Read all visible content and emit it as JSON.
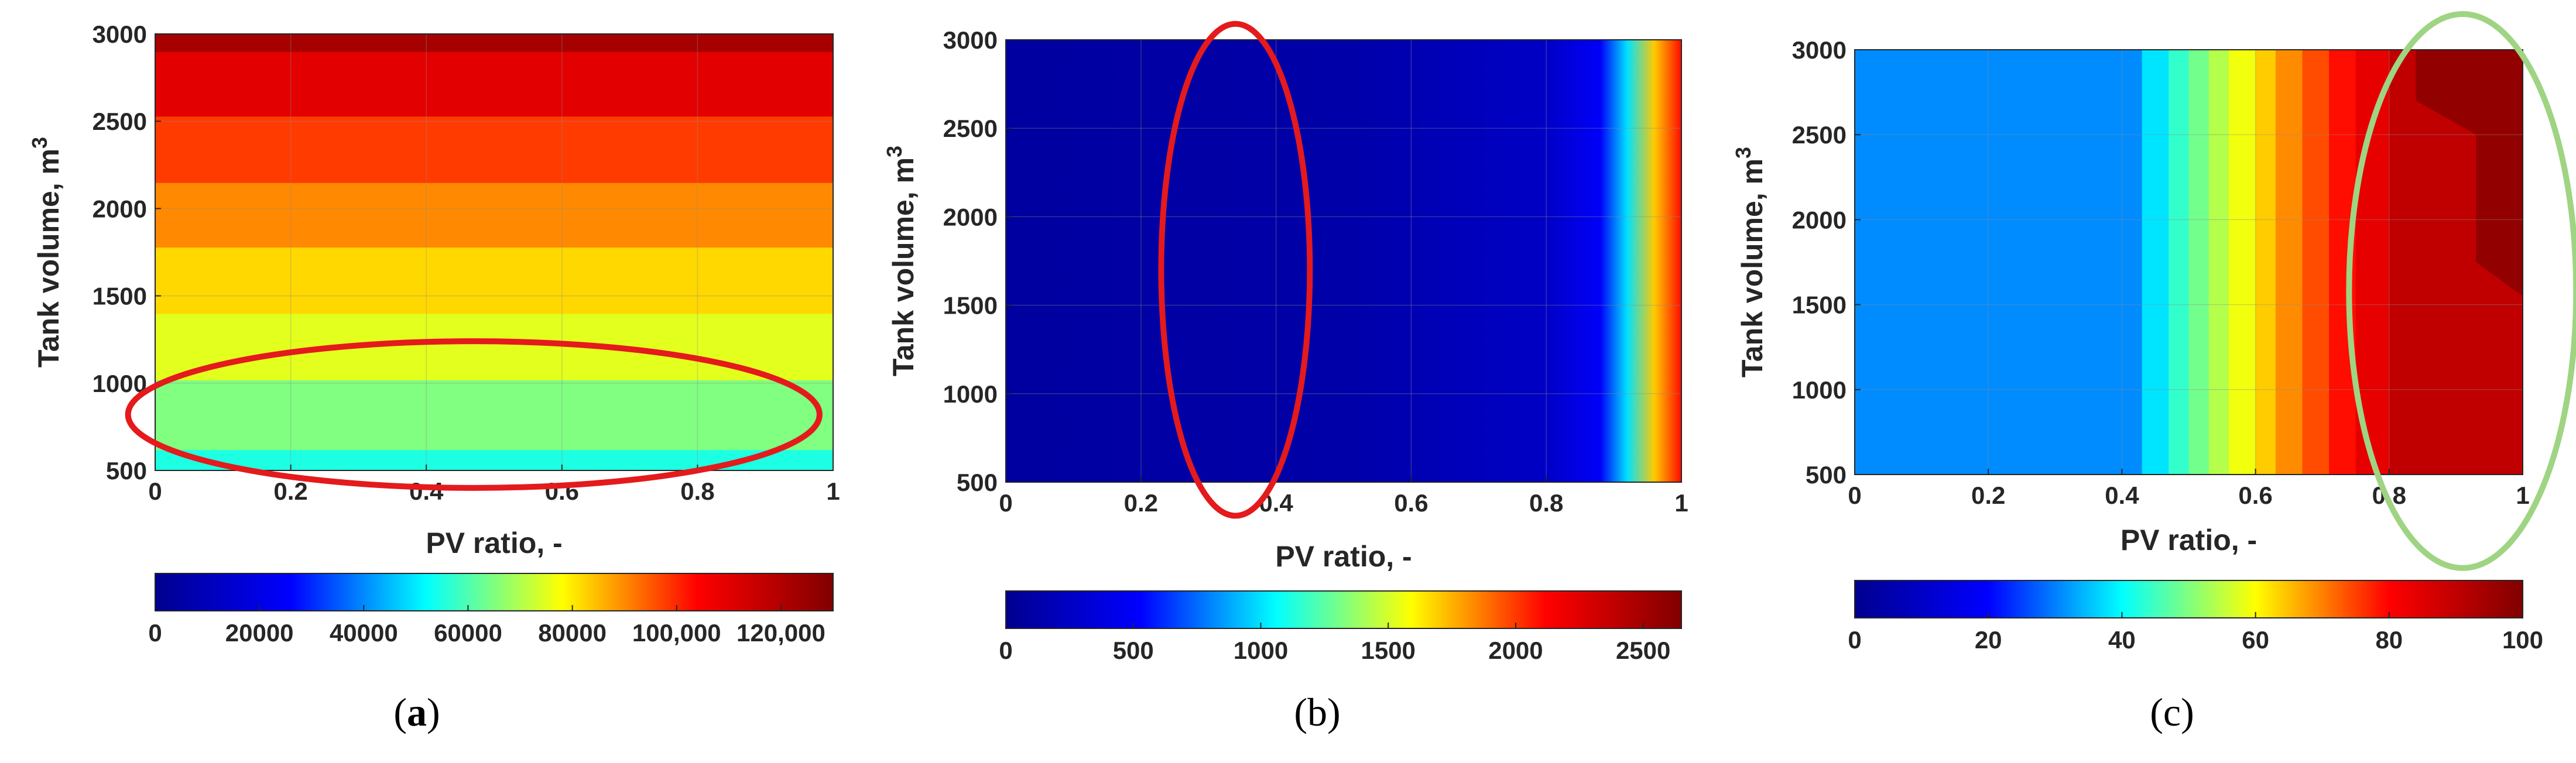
{
  "chart_data": [
    {
      "type": "heatmap",
      "panel_label": "a",
      "xlabel": "PV ratio, -",
      "ylabel": "Tank volume, m",
      "ylabel_superscript": "3",
      "xlim": [
        0,
        1
      ],
      "ylim": [
        500,
        3000
      ],
      "xticks": [
        "0",
        "0.2",
        "0.4",
        "0.6",
        "0.8",
        "1"
      ],
      "yticks": [
        "500",
        "1000",
        "1500",
        "2000",
        "2500",
        "3000"
      ],
      "colorbar": {
        "min": 0,
        "max": 130000,
        "ticks": [
          0,
          20000,
          40000,
          60000,
          80000,
          100000,
          120000
        ],
        "tick_labels": [
          "0",
          "20000",
          "40000",
          "60000",
          "80000",
          "100,000",
          "120,000"
        ]
      },
      "contour_levels": [
        {
          "y_from": 500,
          "y_to": 620,
          "value": 55000
        },
        {
          "y_from": 620,
          "y_to": 1020,
          "value": 65000
        },
        {
          "y_from": 1020,
          "y_to": 1400,
          "value": 75000
        },
        {
          "y_from": 1400,
          "y_to": 1780,
          "value": 82000
        },
        {
          "y_from": 1780,
          "y_to": 2150,
          "value": 90000
        },
        {
          "y_from": 2150,
          "y_to": 2530,
          "value": 98000
        },
        {
          "y_from": 2530,
          "y_to": 2900,
          "value": 110000
        },
        {
          "y_from": 2900,
          "y_to": 3000,
          "value": 122000
        }
      ],
      "annotation": {
        "shape": "ellipse",
        "color": "#e41a1c",
        "center_x": 0.47,
        "center_y": 820,
        "x_halfwidth": 0.51,
        "y_halfheight": 420
      }
    },
    {
      "type": "heatmap",
      "panel_label": "b",
      "xlabel": "PV ratio, -",
      "ylabel": "Tank volume, m",
      "ylabel_superscript": "3",
      "xlim": [
        0,
        1
      ],
      "ylim": [
        500,
        3000
      ],
      "xticks": [
        "0",
        "0.2",
        "0.4",
        "0.6",
        "0.8",
        "1"
      ],
      "yticks": [
        "500",
        "1000",
        "1500",
        "2000",
        "2500",
        "3000"
      ],
      "colorbar": {
        "min": 0,
        "max": 2650,
        "ticks": [
          0,
          500,
          1000,
          1500,
          2000,
          2500
        ],
        "tick_labels": [
          "0",
          "500",
          "1000",
          "1500",
          "2000",
          "2500"
        ]
      },
      "gradient_profile": [
        {
          "x": 0.0,
          "value": 80
        },
        {
          "x": 0.5,
          "value": 120
        },
        {
          "x": 0.8,
          "value": 260
        },
        {
          "x": 0.88,
          "value": 500
        },
        {
          "x": 0.92,
          "value": 1000
        },
        {
          "x": 0.96,
          "value": 1700
        },
        {
          "x": 1.0,
          "value": 2100
        }
      ],
      "annotation": {
        "shape": "ellipse",
        "color": "#e41a1c",
        "center_x": 0.34,
        "center_y": 1700,
        "x_halfwidth": 0.11,
        "y_halfheight": 1390
      }
    },
    {
      "type": "heatmap",
      "panel_label": "c",
      "xlabel": "PV ratio, -",
      "ylabel": "Tank volume, m",
      "ylabel_superscript": "3",
      "xlim": [
        0,
        1
      ],
      "ylim": [
        500,
        3000
      ],
      "xticks": [
        "0",
        "0.2",
        "0.4",
        "0.6",
        "0.8",
        "1"
      ],
      "yticks": [
        "500",
        "1000",
        "1500",
        "2000",
        "2500",
        "3000"
      ],
      "colorbar": {
        "min": 0,
        "max": 100,
        "ticks": [
          0,
          20,
          40,
          60,
          80,
          100
        ],
        "tick_labels": [
          "0",
          "20",
          "40",
          "60",
          "80",
          "100"
        ]
      },
      "contour_bands": [
        {
          "x_from": 0.0,
          "x_to": 0.43,
          "value": 31
        },
        {
          "x_from": 0.43,
          "x_to": 0.47,
          "value": 38
        },
        {
          "x_from": 0.47,
          "x_to": 0.5,
          "value": 44
        },
        {
          "x_from": 0.5,
          "x_to": 0.53,
          "value": 49
        },
        {
          "x_from": 0.53,
          "x_to": 0.56,
          "value": 54
        },
        {
          "x_from": 0.56,
          "x_to": 0.6,
          "value": 59
        },
        {
          "x_from": 0.6,
          "x_to": 0.63,
          "value": 64
        },
        {
          "x_from": 0.63,
          "x_to": 0.67,
          "value": 69
        },
        {
          "x_from": 0.67,
          "x_to": 0.71,
          "value": 74
        },
        {
          "x_from": 0.71,
          "x_to": 0.75,
          "value": 79
        },
        {
          "x_from": 0.75,
          "x_to": 0.8,
          "value": 84
        },
        {
          "x_from": 0.8,
          "x_to": 1.0,
          "value": 90
        }
      ],
      "max_region": {
        "value": 97,
        "polygon": [
          [
            0.84,
            3000
          ],
          [
            0.84,
            2700
          ],
          [
            0.93,
            2500
          ],
          [
            0.93,
            1750
          ],
          [
            1.0,
            1550
          ],
          [
            1.0,
            3000
          ]
        ]
      },
      "annotation": {
        "shape": "ellipse",
        "color": "#9fd483",
        "center_x": 0.91,
        "center_y": 1580,
        "x_halfwidth": 0.17,
        "y_halfheight": 1630
      }
    }
  ],
  "colors": {
    "axis": "#262626",
    "grid": "#8c8c8c"
  },
  "colormap": [
    "#00008f",
    "#0000ff",
    "#00ffff",
    "#ffff00",
    "#ff0000",
    "#800000"
  ]
}
